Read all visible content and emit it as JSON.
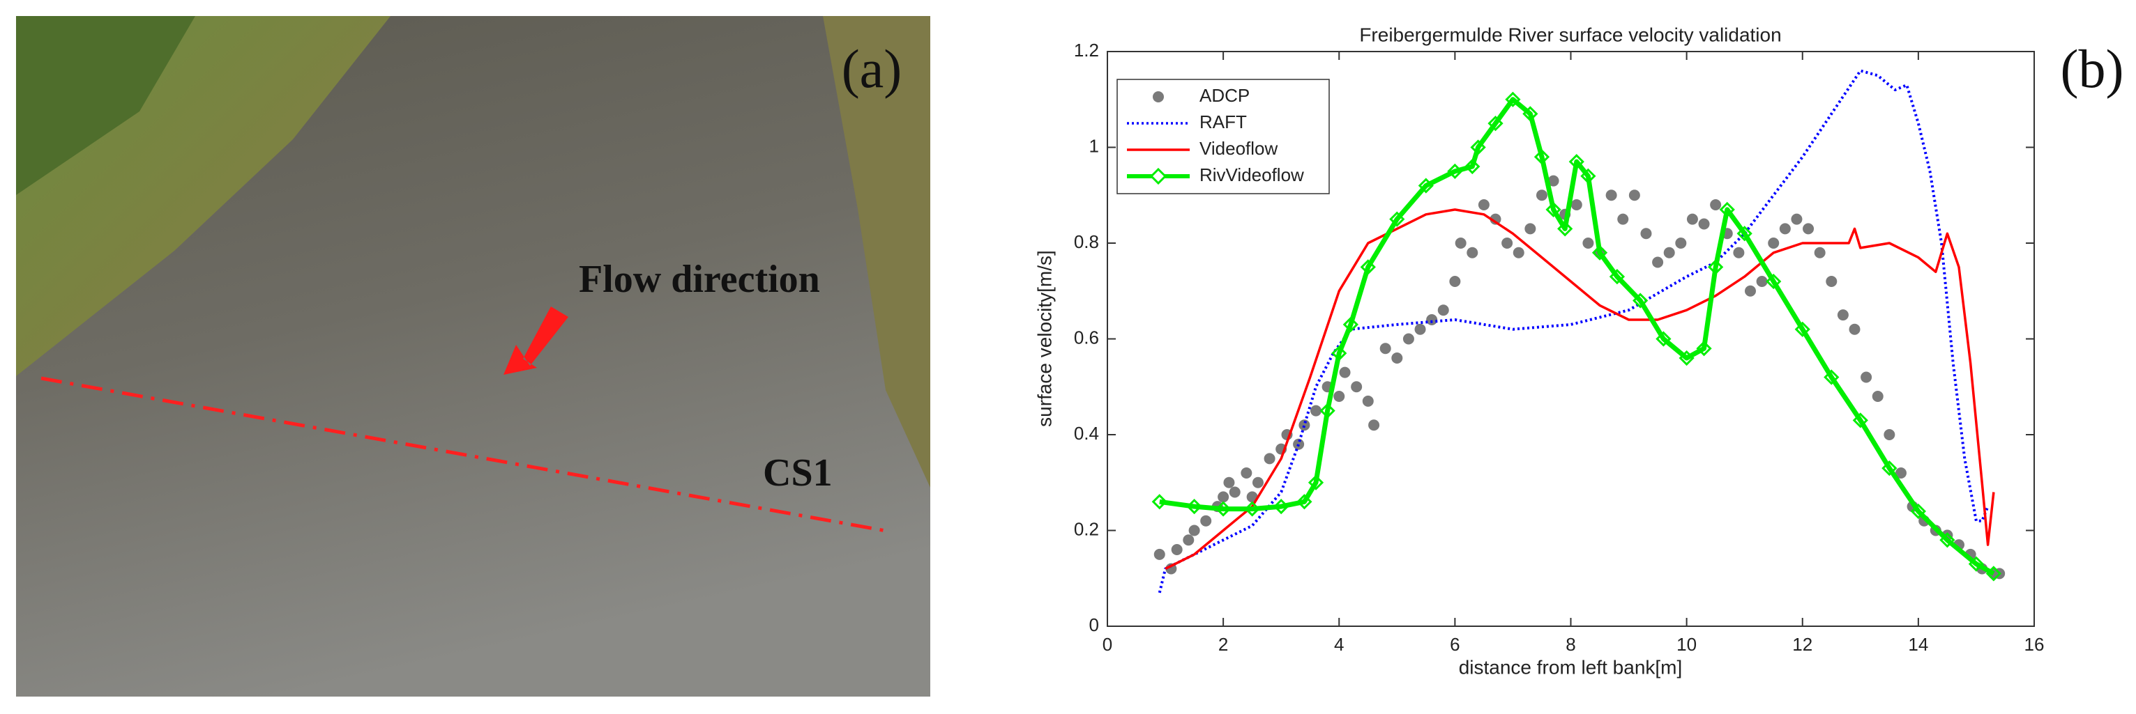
{
  "photo": {
    "label": "(a)",
    "arrow_label": "Flow direction",
    "section_label": "CS1"
  },
  "chart_data": {
    "type": "line",
    "panel_label": "(b)",
    "title": "Freibergermulde River surface velocity validation",
    "xlabel": "distance from left bank[m]",
    "ylabel": "surface velocity[m/s]",
    "xlim": [
      0,
      16
    ],
    "xticks": [
      0,
      2,
      4,
      6,
      8,
      10,
      12,
      14,
      16
    ],
    "ylim": [
      0,
      1.2
    ],
    "yticks": [
      0,
      0.2,
      0.4,
      0.6,
      0.8,
      1,
      1.2
    ],
    "legend": "upper left",
    "grid": false,
    "series": [
      {
        "name": "ADCP",
        "kind": "scatter",
        "color": "#7a7a7a",
        "x": [
          0.9,
          1.1,
          1.2,
          1.4,
          1.5,
          1.7,
          1.9,
          2.0,
          2.1,
          2.2,
          2.4,
          2.5,
          2.6,
          2.8,
          3.0,
          3.1,
          3.3,
          3.4,
          3.6,
          3.8,
          4.0,
          4.1,
          4.3,
          4.5,
          4.6,
          4.8,
          5.0,
          5.2,
          5.4,
          5.6,
          5.8,
          6.0,
          6.1,
          6.3,
          6.5,
          6.7,
          6.9,
          7.1,
          7.3,
          7.5,
          7.7,
          7.9,
          8.1,
          8.3,
          8.5,
          8.7,
          8.9,
          9.1,
          9.3,
          9.5,
          9.7,
          9.9,
          10.1,
          10.3,
          10.5,
          10.7,
          10.9,
          11.1,
          11.3,
          11.5,
          11.7,
          11.9,
          12.1,
          12.3,
          12.5,
          12.7,
          12.9,
          13.1,
          13.3,
          13.5,
          13.7,
          13.9,
          14.1,
          14.3,
          14.5,
          14.7,
          14.9,
          15.1,
          15.3,
          15.4
        ],
        "values": [
          0.15,
          0.12,
          0.16,
          0.18,
          0.2,
          0.22,
          0.25,
          0.27,
          0.3,
          0.28,
          0.32,
          0.27,
          0.3,
          0.35,
          0.37,
          0.4,
          0.38,
          0.42,
          0.45,
          0.5,
          0.48,
          0.53,
          0.5,
          0.47,
          0.42,
          0.58,
          0.56,
          0.6,
          0.62,
          0.64,
          0.66,
          0.72,
          0.8,
          0.78,
          0.88,
          0.85,
          0.8,
          0.78,
          0.83,
          0.9,
          0.93,
          0.86,
          0.88,
          0.8,
          0.78,
          0.9,
          0.85,
          0.9,
          0.82,
          0.76,
          0.78,
          0.8,
          0.85,
          0.84,
          0.88,
          0.82,
          0.78,
          0.7,
          0.72,
          0.8,
          0.83,
          0.85,
          0.83,
          0.78,
          0.72,
          0.65,
          0.62,
          0.52,
          0.48,
          0.4,
          0.32,
          0.25,
          0.22,
          0.2,
          0.19,
          0.17,
          0.15,
          0.12,
          0.11,
          0.11
        ]
      },
      {
        "name": "RAFT",
        "kind": "dotted",
        "color": "#0000ff",
        "x": [
          0.9,
          1.0,
          1.5,
          2.0,
          2.5,
          3.0,
          3.3,
          3.6,
          3.9,
          4.2,
          5,
          6,
          7,
          8,
          9,
          10,
          10.5,
          11,
          11.5,
          12,
          12.5,
          13,
          13.3,
          13.6,
          13.8,
          14.0,
          14.2,
          14.4,
          14.6,
          14.8,
          15.0,
          15.1,
          15.2
        ],
        "values": [
          0.07,
          0.12,
          0.15,
          0.18,
          0.21,
          0.28,
          0.38,
          0.5,
          0.57,
          0.62,
          0.63,
          0.64,
          0.62,
          0.63,
          0.66,
          0.73,
          0.76,
          0.82,
          0.9,
          0.98,
          1.07,
          1.16,
          1.15,
          1.12,
          1.13,
          1.05,
          0.95,
          0.8,
          0.55,
          0.35,
          0.22,
          0.22,
          0.25
        ]
      },
      {
        "name": "Videoflow",
        "kind": "solid",
        "color": "#ff0000",
        "x": [
          1.0,
          1.5,
          2.0,
          2.5,
          3.0,
          3.5,
          4.0,
          4.5,
          5.0,
          5.5,
          6.0,
          6.5,
          7.0,
          7.5,
          8.0,
          8.5,
          9.0,
          9.5,
          10.0,
          10.5,
          11.0,
          11.5,
          12.0,
          12.5,
          12.8,
          12.9,
          13.0,
          13.5,
          14.0,
          14.3,
          14.5,
          14.7,
          14.9,
          15.1,
          15.2,
          15.3
        ],
        "values": [
          0.12,
          0.15,
          0.2,
          0.25,
          0.35,
          0.52,
          0.7,
          0.8,
          0.83,
          0.86,
          0.87,
          0.86,
          0.82,
          0.77,
          0.72,
          0.67,
          0.64,
          0.64,
          0.66,
          0.69,
          0.73,
          0.78,
          0.8,
          0.8,
          0.8,
          0.83,
          0.79,
          0.8,
          0.77,
          0.74,
          0.82,
          0.75,
          0.55,
          0.3,
          0.17,
          0.28
        ]
      },
      {
        "name": "RivVideoflow",
        "kind": "diamond",
        "color": "#00ee00",
        "x": [
          0.9,
          1.5,
          2,
          2.5,
          3,
          3.4,
          3.6,
          3.8,
          4.0,
          4.2,
          4.5,
          5.0,
          5.5,
          6.0,
          6.3,
          6.4,
          6.7,
          7.0,
          7.3,
          7.5,
          7.7,
          7.9,
          8.1,
          8.3,
          8.5,
          8.8,
          9.2,
          9.6,
          10.0,
          10.3,
          10.5,
          10.7,
          11.0,
          11.5,
          12,
          12.5,
          13,
          13.5,
          14,
          14.5,
          15,
          15.3
        ],
        "values": [
          0.26,
          0.25,
          0.245,
          0.245,
          0.25,
          0.26,
          0.3,
          0.45,
          0.57,
          0.63,
          0.75,
          0.85,
          0.92,
          0.95,
          0.96,
          1.0,
          1.05,
          1.1,
          1.07,
          0.98,
          0.87,
          0.83,
          0.97,
          0.94,
          0.78,
          0.73,
          0.68,
          0.6,
          0.56,
          0.58,
          0.75,
          0.87,
          0.82,
          0.72,
          0.62,
          0.52,
          0.43,
          0.33,
          0.24,
          0.18,
          0.13,
          0.11
        ]
      }
    ]
  }
}
